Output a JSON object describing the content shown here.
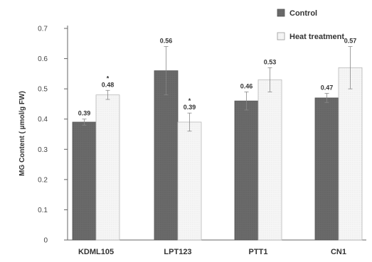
{
  "chart_data": {
    "type": "bar",
    "ylabel": "MG Content ( µmol/g FW)",
    "ylim": [
      0,
      0.7
    ],
    "yticks": [
      "0",
      "0.1",
      "0.2",
      "0.3",
      "0.4",
      "0.5",
      "0.6",
      "0.7"
    ],
    "categories": [
      "KDML105",
      "LPT123",
      "PTT1",
      "CN1"
    ],
    "series": [
      {
        "name": "Control",
        "values": [
          0.39,
          0.56,
          0.46,
          0.47
        ],
        "error": [
          0.01,
          0.08,
          0.03,
          0.015
        ],
        "labels": [
          "0.39",
          "0.56",
          "0.46",
          "0.47"
        ],
        "color": "#6b6b6b"
      },
      {
        "name": "Heat treatment",
        "values": [
          0.48,
          0.39,
          0.53,
          0.57
        ],
        "error": [
          0.015,
          0.03,
          0.04,
          0.07
        ],
        "labels": [
          "0.48",
          "0.39",
          "0.53",
          "0.57"
        ],
        "color": "#f4f4f4"
      }
    ],
    "annotations": [
      {
        "category": "KDML105",
        "series": "Heat treatment",
        "text": "*"
      },
      {
        "category": "LPT123",
        "series": "Heat treatment",
        "text": "*"
      }
    ],
    "legend_position": "top-right",
    "grid": false
  }
}
